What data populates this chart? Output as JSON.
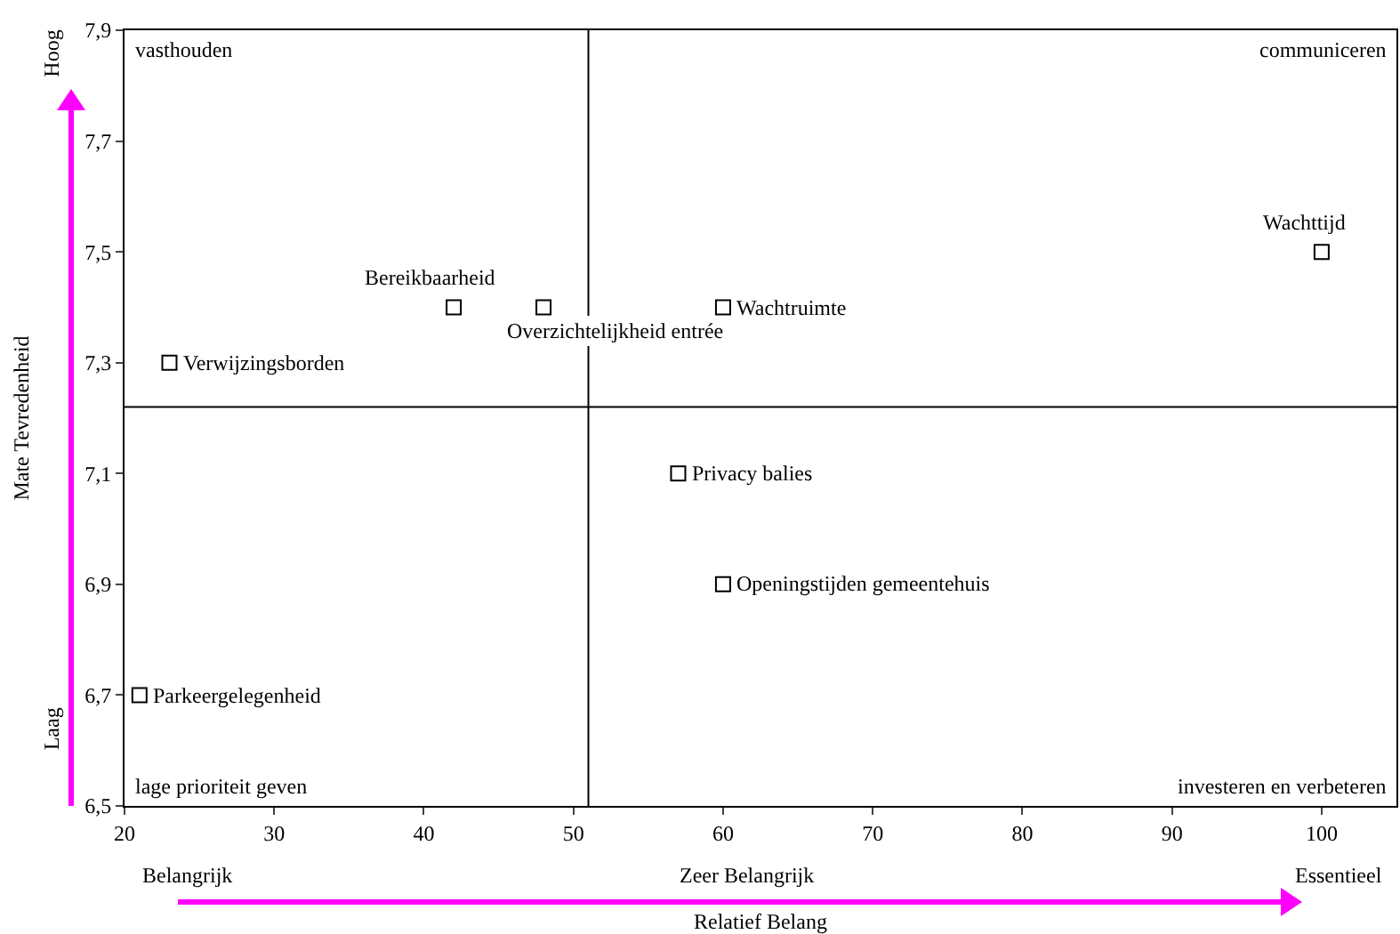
{
  "chart_data": {
    "type": "scatter",
    "xlabel": "Relatief Belang",
    "ylabel": "Mate Tevredenheid",
    "series": [
      {
        "color": "#000000",
        "x": [
          23,
          42,
          48,
          60,
          100,
          57,
          60,
          21
        ],
        "values": [
          7.3,
          7.4,
          7.4,
          7.4,
          7.5,
          7.1,
          6.9,
          6.7
        ]
      }
    ],
    "xlim": [
      20,
      105
    ],
    "xticks": [
      20,
      30,
      40,
      50,
      60,
      70,
      80,
      90,
      100
    ],
    "ylim": [
      6.5,
      7.9
    ],
    "yticks": [
      {
        "value": 6.5,
        "label": "6,5"
      },
      {
        "value": 6.7,
        "label": "6,7"
      },
      {
        "value": 6.9,
        "label": "6,9"
      },
      {
        "value": 7.1,
        "label": "7,1"
      },
      {
        "value": 7.3,
        "label": "7,3"
      },
      {
        "value": 7.5,
        "label": "7,5"
      },
      {
        "value": 7.7,
        "label": "7,7"
      },
      {
        "value": 7.9,
        "label": "7,9"
      }
    ],
    "ref_lines": [
      {
        "axis": "x",
        "value": 51,
        "color": "#000000"
      },
      {
        "axis": "y",
        "value": 7.22,
        "color": "#000000"
      }
    ],
    "marker": "square",
    "annotations": [
      "vasthouden",
      "communiceren",
      "lage prioriteit geven",
      "investeren en verbeteren",
      "Hoog",
      "Laag",
      "Belangrijk",
      "Zeer Belangrijk",
      "Essentieel",
      {
        "text": "Verwijzingsborden",
        "x": 23,
        "y": 7.3
      },
      {
        "text": "Bereikbaarheid",
        "x": 42,
        "y": 7.4
      },
      {
        "text": "Overzichtelijkheid entrée",
        "x": 48,
        "y": 7.4
      },
      {
        "text": "Wachtruimte",
        "x": 60,
        "y": 7.4
      },
      {
        "text": "Wachttijd",
        "x": 100,
        "y": 7.5
      },
      {
        "text": "Privacy balies",
        "x": 57,
        "y": 7.1
      },
      {
        "text": "Openingstijden gemeentehuis",
        "x": 60,
        "y": 6.9
      },
      {
        "text": "Parkeergelegenheid",
        "x": 21,
        "y": 6.7
      }
    ]
  }
}
